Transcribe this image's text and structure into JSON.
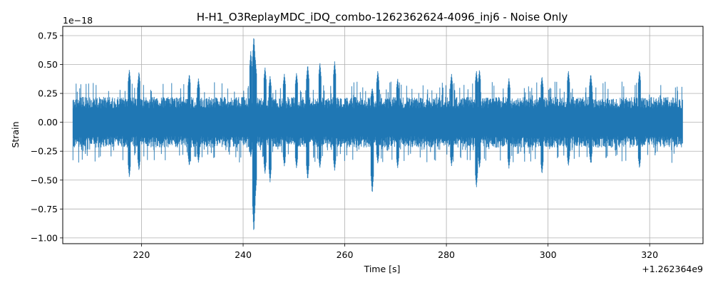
{
  "chart_data": {
    "type": "line",
    "title": "H-H1_O3ReplayMDC_iDQ_combo-1262362624-4096_inj6 - Noise Only",
    "xlabel": "Time [s]",
    "ylabel": "Strain",
    "x_offset_label": "+1.262364e9",
    "y_scale_label": "1e−18",
    "xlim": [
      204.5,
      330.5
    ],
    "ylim": [
      -1.05,
      0.83
    ],
    "x_ticks": [
      220,
      240,
      260,
      280,
      300,
      320
    ],
    "x_tick_labels": [
      "220",
      "240",
      "260",
      "280",
      "300",
      "320"
    ],
    "y_ticks": [
      -1.0,
      -0.75,
      -0.5,
      -0.25,
      0.0,
      0.25,
      0.5,
      0.75
    ],
    "y_tick_labels": [
      "−1.00",
      "−0.75",
      "−0.50",
      "−0.25",
      "0.00",
      "0.25",
      "0.50",
      "0.75"
    ],
    "grid": true,
    "line_color": "#1f77b4",
    "series": [
      {
        "x_start": 206.5,
        "x_end": 326.5,
        "typical_envelope": 0.22,
        "peaks": [
          {
            "x": 217.6,
            "max": 0.46,
            "min": -0.48
          },
          {
            "x": 219.5,
            "max": 0.44,
            "min": -0.42
          },
          {
            "x": 229.4,
            "max": 0.42,
            "min": -0.38
          },
          {
            "x": 231.2,
            "max": 0.38,
            "min": -0.35
          },
          {
            "x": 241.5,
            "max": 0.62,
            "min": -0.3
          },
          {
            "x": 242.1,
            "max": 0.75,
            "min": -0.96
          },
          {
            "x": 242.4,
            "max": 0.55,
            "min": -0.65
          },
          {
            "x": 244.3,
            "max": 0.48,
            "min": -0.45
          },
          {
            "x": 245.3,
            "max": 0.4,
            "min": -0.52
          },
          {
            "x": 248.1,
            "max": 0.42,
            "min": -0.38
          },
          {
            "x": 250.5,
            "max": 0.43,
            "min": -0.4
          },
          {
            "x": 252.7,
            "max": 0.5,
            "min": -0.5
          },
          {
            "x": 255.1,
            "max": 0.52,
            "min": -0.4
          },
          {
            "x": 258.0,
            "max": 0.53,
            "min": -0.42
          },
          {
            "x": 265.4,
            "max": 0.3,
            "min": -0.62
          },
          {
            "x": 266.5,
            "max": 0.45,
            "min": -0.36
          },
          {
            "x": 270.4,
            "max": 0.38,
            "min": -0.4
          },
          {
            "x": 281.0,
            "max": 0.42,
            "min": -0.38
          },
          {
            "x": 285.9,
            "max": 0.45,
            "min": -0.57
          },
          {
            "x": 286.5,
            "max": 0.46,
            "min": -0.4
          },
          {
            "x": 292.3,
            "max": 0.38,
            "min": -0.4
          },
          {
            "x": 298.8,
            "max": 0.4,
            "min": -0.45
          },
          {
            "x": 304.0,
            "max": 0.45,
            "min": -0.38
          },
          {
            "x": 308.4,
            "max": 0.42,
            "min": -0.36
          },
          {
            "x": 318.0,
            "max": 0.45,
            "min": -0.4
          }
        ]
      }
    ]
  }
}
